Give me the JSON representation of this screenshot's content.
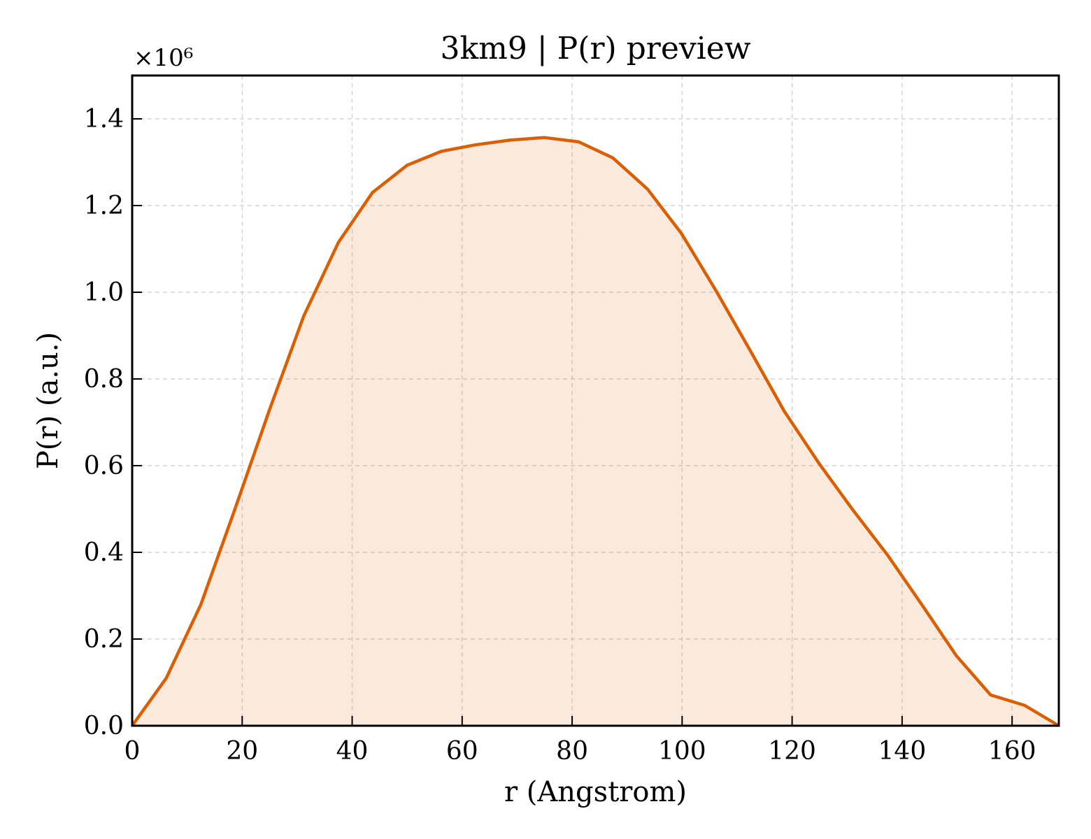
{
  "chart_data": {
    "type": "area",
    "title": "3km9 | P(r) preview",
    "xlabel": "r (Angstrom)",
    "ylabel": "P(r) (a.u.)",
    "y_offset_label": "×10⁶",
    "xlim": [
      0,
      168.5
    ],
    "ylim": [
      0,
      1.5
    ],
    "x_ticks": [
      0,
      20,
      40,
      60,
      80,
      100,
      120,
      140,
      160
    ],
    "y_ticks": [
      0.0,
      0.2,
      0.4,
      0.6,
      0.8,
      1.0,
      1.2,
      1.4
    ],
    "x_tick_labels": [
      "0",
      "20",
      "40",
      "60",
      "80",
      "100",
      "120",
      "140",
      "160"
    ],
    "y_tick_labels": [
      "0.0",
      "0.2",
      "0.4",
      "0.6",
      "0.8",
      "1.0",
      "1.2",
      "1.4"
    ],
    "grid": true,
    "line_color": "#d95f02",
    "fill_color": "#d95f02",
    "series": [
      {
        "x": [
          0,
          6.2,
          12.5,
          18.7,
          25.0,
          31.2,
          37.5,
          43.7,
          50.0,
          56.2,
          62.4,
          68.7,
          74.9,
          81.2,
          87.4,
          93.7,
          99.9,
          106.1,
          112.4,
          118.6,
          124.9,
          131.1,
          137.4,
          143.6,
          149.9,
          156.1,
          162.3,
          168.5
        ],
        "y": [
          0.0,
          0.11,
          0.28,
          0.5,
          0.73,
          0.945,
          1.115,
          1.23,
          1.293,
          1.325,
          1.34,
          1.351,
          1.357,
          1.347,
          1.31,
          1.238,
          1.135,
          1.005,
          0.865,
          0.725,
          0.605,
          0.497,
          0.393,
          0.279,
          0.161,
          0.071,
          0.047,
          0.0
        ]
      }
    ]
  }
}
